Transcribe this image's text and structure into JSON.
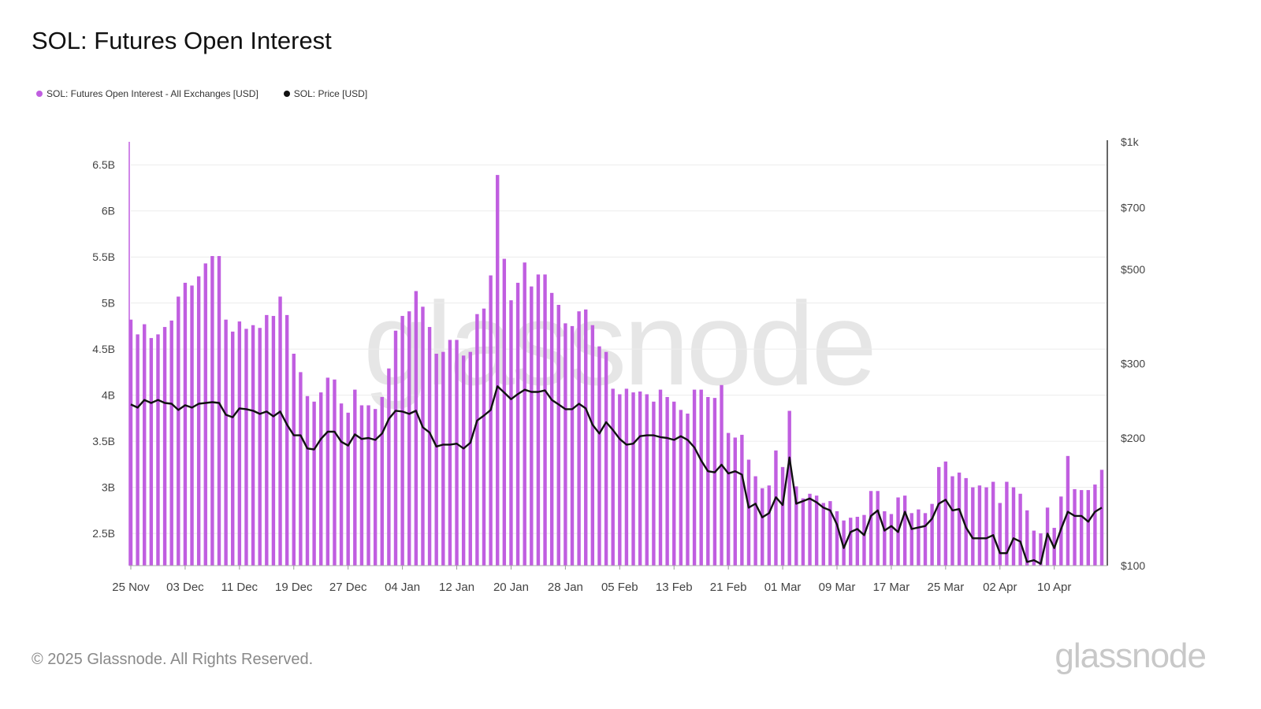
{
  "title": "SOL: Futures Open Interest",
  "legend": {
    "oi_label": "SOL: Futures Open Interest - All Exchanges [USD]",
    "price_label": "SOL: Price [USD]"
  },
  "colors": {
    "bars": "#c05ee0",
    "price": "#111111",
    "grid": "#ececec",
    "watermark": "#e6e6e6"
  },
  "footer": "© 2025 Glassnode. All Rights Reserved.",
  "brand": "glassnode",
  "watermark": "glassnode",
  "chart_data": {
    "type": "bar",
    "title": "SOL: Futures Open Interest",
    "xlabel": "",
    "ylabel": "",
    "ylim": [
      2.15,
      6.75
    ],
    "y2lim": [
      100,
      1000
    ],
    "y2_scale": "log",
    "grid": true,
    "legend_position": "top-left",
    "y_ticks": [
      "2.5B",
      "3B",
      "3.5B",
      "4B",
      "4.5B",
      "5B",
      "5.5B",
      "6B",
      "6.5B"
    ],
    "y_tick_values": [
      2.5,
      3,
      3.5,
      4,
      4.5,
      5,
      5.5,
      6,
      6.5
    ],
    "y2_ticks": [
      "$100",
      "$200",
      "$300",
      "$500",
      "$700",
      "$1k"
    ],
    "y2_tick_values": [
      100,
      200,
      300,
      500,
      700,
      1000
    ],
    "x_ticks": [
      "25 Nov",
      "03 Dec",
      "11 Dec",
      "19 Dec",
      "27 Dec",
      "04 Jan",
      "12 Jan",
      "20 Jan",
      "28 Jan",
      "05 Feb",
      "13 Feb",
      "21 Feb",
      "01 Mar",
      "09 Mar",
      "17 Mar",
      "25 Mar",
      "02 Apr",
      "10 Apr"
    ],
    "x_tick_indices": [
      0,
      8,
      16,
      24,
      32,
      40,
      48,
      56,
      64,
      72,
      80,
      88,
      96,
      104,
      112,
      120,
      128,
      136
    ],
    "series": [
      {
        "name": "SOL: Futures Open Interest - All Exchanges [USD]",
        "unit": "B USD",
        "values": [
          4.82,
          4.66,
          4.77,
          4.62,
          4.66,
          4.74,
          4.81,
          5.07,
          5.22,
          5.19,
          5.29,
          5.43,
          5.51,
          5.51,
          4.82,
          4.69,
          4.8,
          4.72,
          4.76,
          4.73,
          4.87,
          4.86,
          5.07,
          4.87,
          4.45,
          4.25,
          3.99,
          3.93,
          4.03,
          4.19,
          4.17,
          3.91,
          3.81,
          4.06,
          3.89,
          3.89,
          3.85,
          3.98,
          4.29,
          4.7,
          4.86,
          4.91,
          5.13,
          4.96,
          4.74,
          4.45,
          4.47,
          4.6,
          4.6,
          4.43,
          4.47,
          4.88,
          4.94,
          5.3,
          6.39,
          5.48,
          5.03,
          5.22,
          5.44,
          5.18,
          5.31,
          5.31,
          5.11,
          4.98,
          4.78,
          4.75,
          4.91,
          4.93,
          4.76,
          4.53,
          4.47,
          4.07,
          4.01,
          4.07,
          4.03,
          4.04,
          4.01,
          3.93,
          4.06,
          3.98,
          3.93,
          3.84,
          3.8,
          4.06,
          4.06,
          3.98,
          3.97,
          4.11,
          3.59,
          3.54,
          3.57,
          3.3,
          3.12,
          2.99,
          3.02,
          3.4,
          3.22,
          3.83,
          3.01,
          2.88,
          2.93,
          2.91,
          2.83,
          2.85,
          2.74,
          2.64,
          2.67,
          2.68,
          2.7,
          2.96,
          2.96,
          2.74,
          2.71,
          2.89,
          2.91,
          2.72,
          2.76,
          2.72,
          2.82,
          3.22,
          3.28,
          3.12,
          3.16,
          3.1,
          3.0,
          3.02,
          3.0,
          3.06,
          2.83,
          3.06,
          3.0,
          2.93,
          2.75,
          2.53,
          2.5,
          2.78,
          2.56,
          2.9,
          3.34,
          2.98,
          2.97,
          2.97,
          3.03,
          3.19
        ]
      },
      {
        "name": "SOL: Price [USD]",
        "unit": "USD",
        "values": [
          240,
          236,
          246,
          242,
          246,
          242,
          241,
          233,
          239,
          236,
          241,
          242,
          243,
          242,
          227,
          224,
          235,
          234,
          232,
          228,
          231,
          225,
          231,
          215,
          203,
          203,
          189,
          188,
          199,
          207,
          207,
          196,
          192,
          204,
          199,
          200,
          198,
          205,
          222,
          232,
          231,
          228,
          232,
          212,
          206,
          191,
          193,
          193,
          194,
          189,
          195,
          220,
          226,
          233,
          265,
          256,
          247,
          254,
          260,
          257,
          257,
          259,
          246,
          240,
          234,
          234,
          241,
          235,
          215,
          205,
          218,
          209,
          199,
          193,
          194,
          202,
          203,
          203,
          201,
          200,
          198,
          202,
          198,
          190,
          177,
          167,
          166,
          173,
          165,
          167,
          164,
          137,
          140,
          130,
          133,
          145,
          139,
          180,
          140,
          142,
          144,
          141,
          137,
          135,
          125,
          110,
          120,
          122,
          118,
          131,
          135,
          121,
          124,
          120,
          134,
          122,
          123,
          124,
          129,
          140,
          143,
          135,
          136,
          123,
          116,
          116,
          116,
          118,
          107,
          107,
          116,
          114,
          102,
          103,
          101,
          119,
          110,
          122,
          134,
          131,
          131,
          127,
          134,
          137
        ]
      }
    ]
  }
}
